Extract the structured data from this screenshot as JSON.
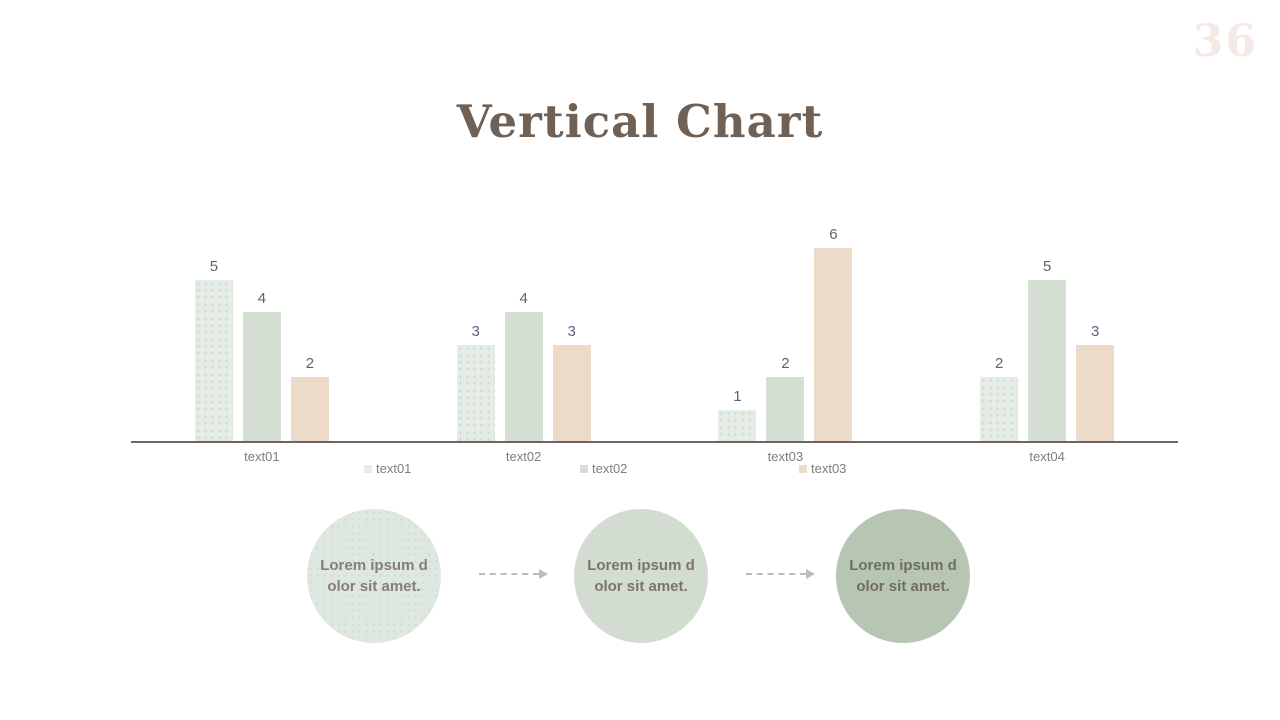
{
  "page": {
    "number": "36"
  },
  "title": "Vertical Chart",
  "chart_data": {
    "type": "bar",
    "title": "Vertical Chart",
    "categories": [
      "text01",
      "text02",
      "text03",
      "text04"
    ],
    "series": [
      {
        "name": "text01",
        "color": "#e5ece6",
        "values": [
          5,
          3,
          1,
          2
        ]
      },
      {
        "name": "text02",
        "color": "#d4ded3",
        "values": [
          4,
          4,
          2,
          5
        ]
      },
      {
        "name": "text03",
        "color": "#ecdbc8",
        "values": [
          2,
          3,
          6,
          3
        ]
      }
    ],
    "xlabel": "",
    "ylabel": "",
    "ylim": [
      0,
      6
    ],
    "grid": false,
    "data_labels": true,
    "data_label_color": "#5b6377",
    "category_label_color": "#7e7e76",
    "axis_color": "#6e6560",
    "legend_position": "bottom"
  },
  "legend": {
    "entries": [
      {
        "label": "text01",
        "color": "#e5ece6"
      },
      {
        "label": "text02",
        "color": "#d4ded3"
      },
      {
        "label": "text03",
        "color": "#ecdbc8"
      }
    ]
  },
  "process": {
    "steps": [
      {
        "text": "Lorem ipsum d\nolor sit amet.",
        "color": "#dfe8e0",
        "text_color": "#877d74"
      },
      {
        "text": "Lorem ipsum d\nolor sit amet.",
        "color": "#d2dcd0",
        "text_color": "#7c736a"
      },
      {
        "text": "Lorem ipsum d\nolor sit amet.",
        "color": "#b7c6b3",
        "text_color": "#716d62"
      }
    ],
    "arrow_color": "#b4c1b3"
  }
}
